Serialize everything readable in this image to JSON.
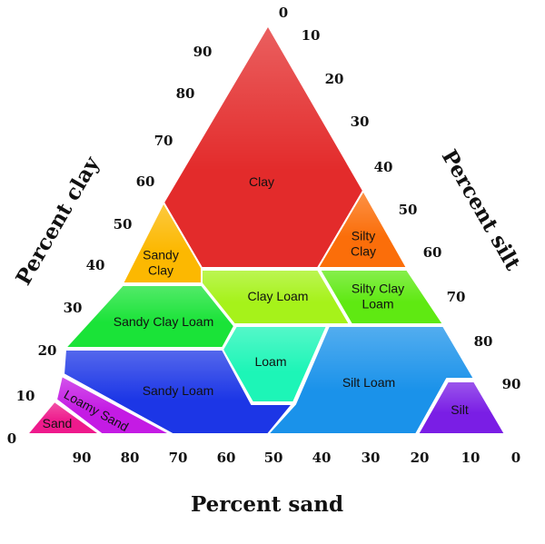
{
  "axes": {
    "clay_title": "Percent clay",
    "silt_title": "Percent silt",
    "sand_title": "Percent sand",
    "clay_ticks": [
      "0",
      "10",
      "20",
      "30",
      "40",
      "50",
      "60",
      "70",
      "80",
      "90"
    ],
    "silt_ticks": [
      "0",
      "10",
      "20",
      "30",
      "40",
      "50",
      "60",
      "70",
      "80",
      "90"
    ],
    "sand_ticks": [
      "90",
      "80",
      "70",
      "60",
      "50",
      "40",
      "30",
      "20",
      "10",
      "0"
    ]
  },
  "regions": [
    {
      "name": "clay",
      "lines": [
        "Clay"
      ],
      "color": "#e32b2b"
    },
    {
      "name": "silty-clay",
      "lines": [
        "Silty",
        "Clay"
      ],
      "color": "#fb6e0a"
    },
    {
      "name": "sandy-clay",
      "lines": [
        "Sandy",
        "Clay"
      ],
      "color": "#fcb801"
    },
    {
      "name": "clay-loam",
      "lines": [
        "Clay Loam"
      ],
      "color": "#a6f21a"
    },
    {
      "name": "silty-clay-loam",
      "lines": [
        "Silty Clay",
        "Loam"
      ],
      "color": "#5fe912"
    },
    {
      "name": "sandy-clay-loam",
      "lines": [
        "Sandy Clay Loam"
      ],
      "color": "#1ae338"
    },
    {
      "name": "loam",
      "lines": [
        "Loam"
      ],
      "color": "#1df5b7"
    },
    {
      "name": "silt-loam",
      "lines": [
        "Silt Loam"
      ],
      "color": "#1a92ea"
    },
    {
      "name": "sandy-loam",
      "lines": [
        "Sandy Loam"
      ],
      "color": "#1c36e6"
    },
    {
      "name": "silt",
      "lines": [
        "Silt"
      ],
      "color": "#7a1ee5"
    },
    {
      "name": "loamy-sand",
      "lines": [
        "Loamy Sand"
      ],
      "color": "#c41be4"
    },
    {
      "name": "sand",
      "lines": [
        "Sand"
      ],
      "color": "#ee1a8c"
    }
  ]
}
